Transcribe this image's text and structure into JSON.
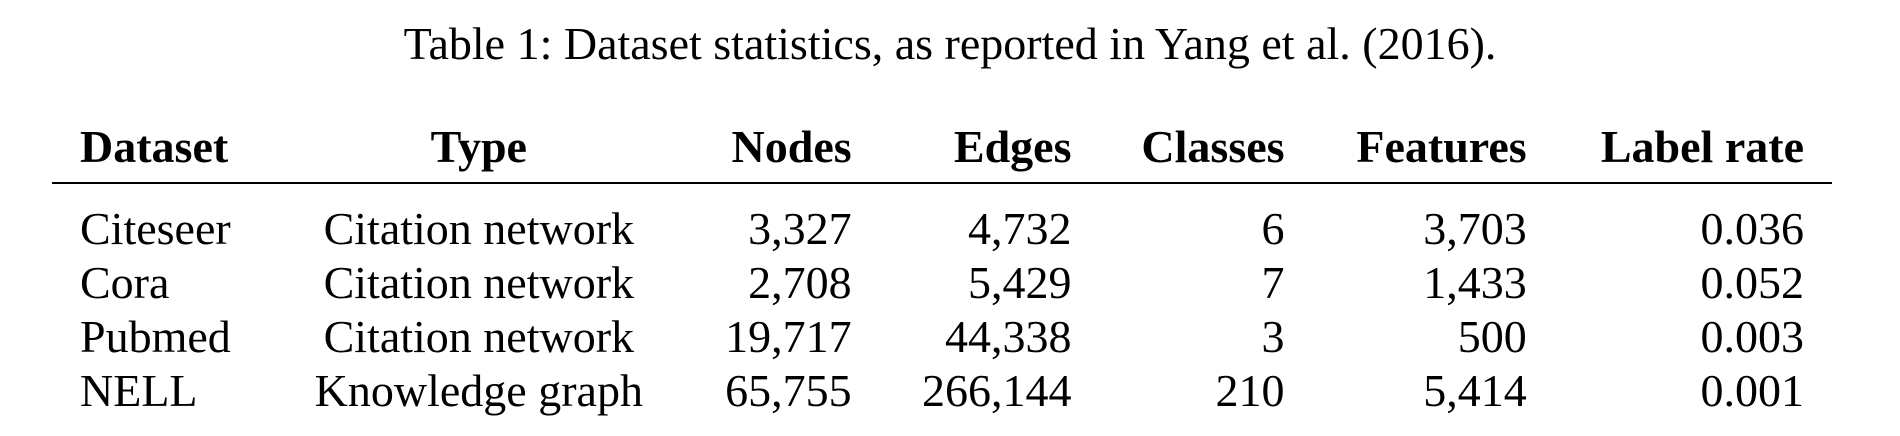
{
  "caption": "Table 1: Dataset statistics, as reported in Yang et al. (2016).",
  "table": {
    "headers": [
      "Dataset",
      "Type",
      "Nodes",
      "Edges",
      "Classes",
      "Features",
      "Label rate"
    ],
    "rows": [
      [
        "Citeseer",
        "Citation network",
        "3,327",
        "4,732",
        "6",
        "3,703",
        "0.036"
      ],
      [
        "Cora",
        "Citation network",
        "2,708",
        "5,429",
        "7",
        "1,433",
        "0.052"
      ],
      [
        "Pubmed",
        "Citation network",
        "19,717",
        "44,338",
        "3",
        "500",
        "0.003"
      ],
      [
        "NELL",
        "Knowledge graph",
        "65,755",
        "266,144",
        "210",
        "5,414",
        "0.001"
      ]
    ]
  }
}
